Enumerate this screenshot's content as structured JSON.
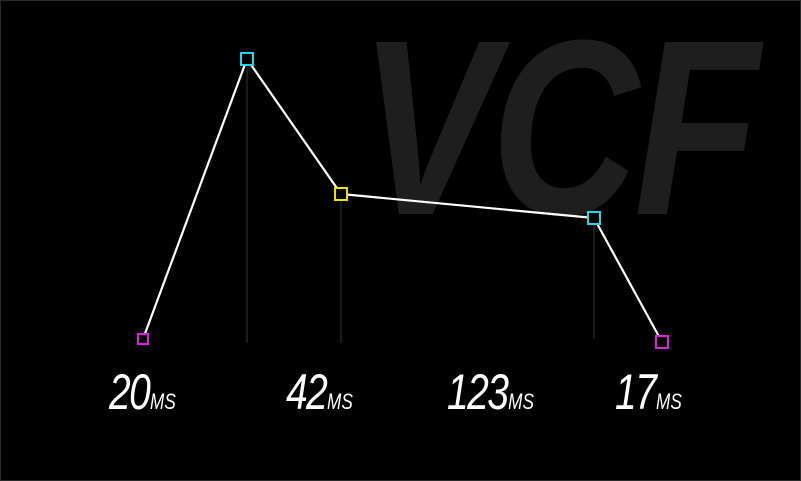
{
  "panel": {
    "watermark_text": "VCF"
  },
  "envelope": {
    "line_color": "#ffffff",
    "guide_color": "#2a3a3a",
    "nodes": [
      {
        "name": "start",
        "color": "#e020e0"
      },
      {
        "name": "attack-peak",
        "color": "#20d8e8"
      },
      {
        "name": "decay",
        "color": "#f0e000"
      },
      {
        "name": "sustain",
        "color": "#20d8e8"
      },
      {
        "name": "end",
        "color": "#e020e0"
      }
    ]
  },
  "times": [
    {
      "value": "20",
      "unit": "MS"
    },
    {
      "value": "42",
      "unit": "MS"
    },
    {
      "value": "123",
      "unit": "MS"
    },
    {
      "value": "17",
      "unit": "MS"
    }
  ]
}
